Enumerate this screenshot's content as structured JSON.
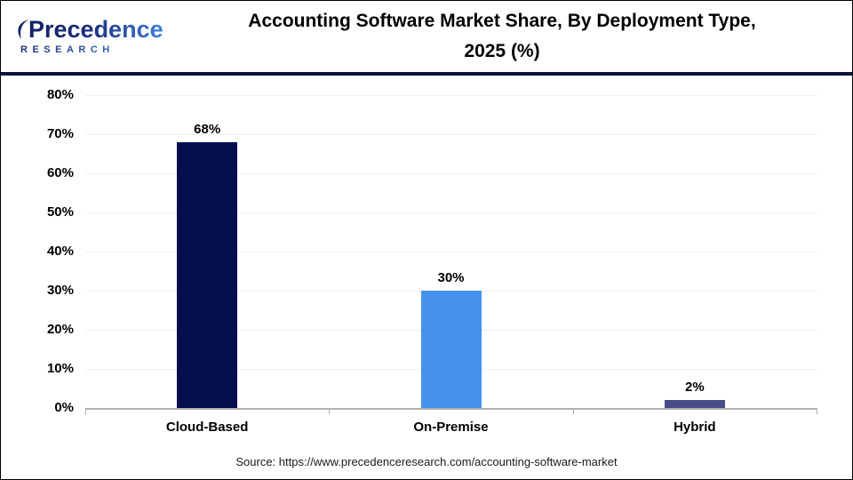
{
  "logo": {
    "name": "Precedence",
    "subname": "RESEARCH"
  },
  "header": {
    "title_line1": "Accounting Software Market Share, By Deployment Type,",
    "title_line2": "2025 (%)"
  },
  "footer": {
    "source": "Source: https://www.precedenceresearch.com/accounting-software-market"
  },
  "colors": {
    "header_rule": "#0e1240",
    "grid": "#efefef",
    "axis": "#b0b0b0",
    "bar_cloud": "#050f4d",
    "bar_onpremise": "#4592ec",
    "bar_hybrid": "#474e86"
  },
  "chart_data": {
    "type": "bar",
    "title": "Accounting Software Market Share, By Deployment Type, 2025 (%)",
    "categories": [
      "Cloud-Based",
      "On-Premise",
      "Hybrid"
    ],
    "values": [
      68,
      30,
      2
    ],
    "value_labels": [
      "68%",
      "30%",
      "2%"
    ],
    "bar_colors": [
      "#050f4d",
      "#4592ec",
      "#474e86"
    ],
    "xlabel": "",
    "ylabel": "",
    "ylim": [
      0,
      80
    ],
    "ytick_step": 10,
    "ytick_labels": [
      "0%",
      "10%",
      "20%",
      "30%",
      "40%",
      "50%",
      "60%",
      "70%",
      "80%"
    ],
    "grid": true,
    "legend": "none"
  }
}
